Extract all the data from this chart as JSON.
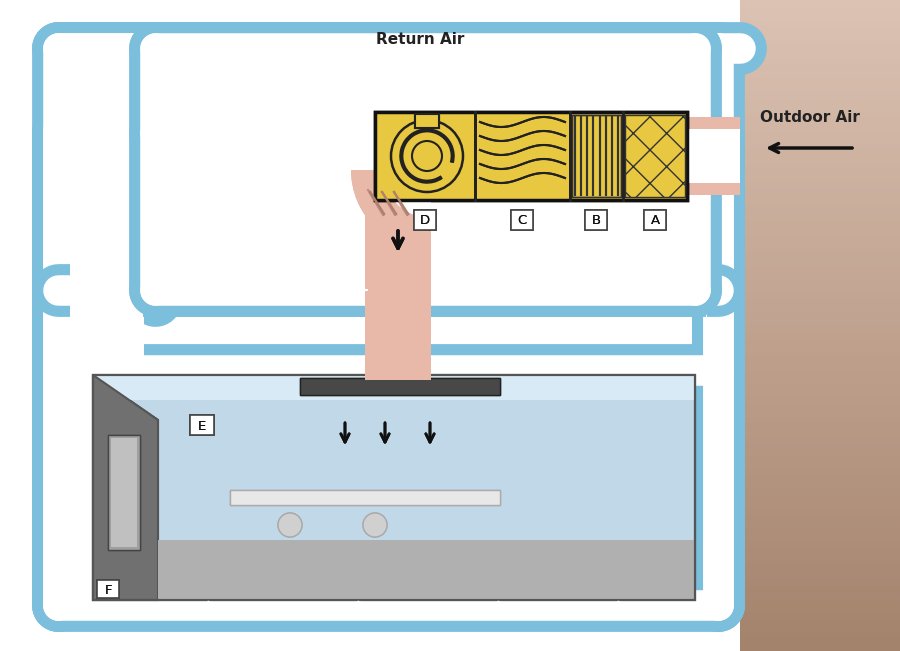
{
  "blue": "#7bbfdd",
  "blue_dark": "#5a9fc0",
  "blue_light": "#aed4e8",
  "pink": "#e8b8a8",
  "yellow": "#e8c840",
  "yellow_dark": "#d4aa20",
  "white": "#ffffff",
  "black": "#111111",
  "gray_dark": "#606060",
  "gray_mid": "#909090",
  "gray_light": "#c0c0c0",
  "room_sky": "#bcd8e8",
  "room_floor": "#b0b0b0",
  "room_wall_left": "#808080",
  "wall_grad_top": "#d8c8b8",
  "wall_grad_bot": "#a87860",
  "title_text": "Return Air",
  "outdoor_text": "Outdoor Air",
  "label_D": "D",
  "label_C": "C",
  "label_B": "B",
  "label_A": "A",
  "label_E": "E",
  "label_F": "F",
  "figsize": [
    9.0,
    6.51
  ],
  "dpi": 100
}
